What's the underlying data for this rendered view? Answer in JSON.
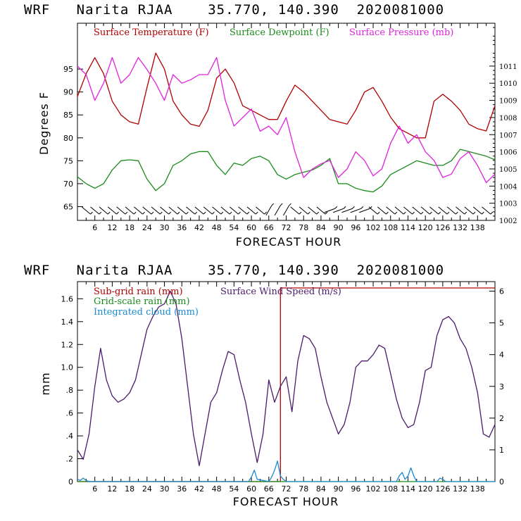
{
  "chart_data": [
    {
      "type": "line",
      "header": "WRF   Narita RJAA    35.770, 140.390  2020081000",
      "xlabel": "FORECAST HOUR",
      "ylabel": "Degrees F",
      "xlim": [
        0,
        144
      ],
      "ylim": [
        62,
        105
      ],
      "y2lim": [
        1002,
        1013.5
      ],
      "xticks": [
        6,
        12,
        18,
        24,
        30,
        36,
        42,
        48,
        54,
        60,
        66,
        72,
        78,
        84,
        90,
        96,
        102,
        108,
        114,
        120,
        126,
        132,
        138
      ],
      "yticks": [
        65,
        70,
        75,
        80,
        85,
        90,
        95
      ],
      "y2ticks": [
        1002,
        1003,
        1004,
        1005,
        1006,
        1007,
        1008,
        1009,
        1010,
        1011
      ],
      "series": [
        {
          "name": "Surface Temperature (F)",
          "color": "#b00000",
          "axis": "left",
          "x": [
            0,
            3,
            6,
            9,
            12,
            15,
            18,
            21,
            24,
            27,
            30,
            33,
            36,
            39,
            42,
            45,
            48,
            51,
            54,
            57,
            60,
            63,
            66,
            69,
            72,
            75,
            78,
            81,
            84,
            87,
            90,
            93,
            96,
            99,
            102,
            105,
            108,
            111,
            114,
            117,
            120,
            123,
            126,
            129,
            132,
            135,
            138,
            141,
            144
          ],
          "values": [
            89,
            94,
            97.5,
            94,
            88,
            85,
            83.5,
            83,
            91,
            98.5,
            95,
            88,
            85,
            83,
            82.5,
            86,
            93,
            95,
            92,
            87,
            86,
            85,
            84,
            84,
            88,
            91.5,
            90,
            88,
            86,
            84,
            83.5,
            83,
            86,
            90,
            91,
            88,
            84.5,
            82,
            81,
            80,
            80,
            88,
            89.5,
            88,
            86,
            83,
            82,
            81.5,
            87
          ]
        },
        {
          "name": "Surface Dewpoint (F)",
          "color": "#1a8a1a",
          "axis": "left",
          "x": [
            0,
            3,
            6,
            9,
            12,
            15,
            18,
            21,
            24,
            27,
            30,
            33,
            36,
            39,
            42,
            45,
            48,
            51,
            54,
            57,
            60,
            63,
            66,
            69,
            72,
            75,
            78,
            81,
            84,
            87,
            90,
            93,
            96,
            99,
            102,
            105,
            108,
            111,
            114,
            117,
            120,
            123,
            126,
            129,
            132,
            135,
            138,
            141,
            144
          ],
          "values": [
            71.5,
            70,
            69,
            70,
            73,
            75,
            75.2,
            75,
            71,
            68.5,
            70,
            74,
            75,
            76.5,
            77,
            77,
            74,
            72,
            74.5,
            74,
            75.5,
            76,
            75,
            72,
            71,
            72,
            72.5,
            73,
            74,
            75.5,
            70,
            70,
            69,
            68.5,
            68.2,
            69.5,
            72,
            73,
            74,
            75,
            74.5,
            74,
            74,
            75,
            77.5,
            77,
            76.5,
            76,
            75.2
          ]
        },
        {
          "name": "Surface Pressure (mb)",
          "color": "#e020e0",
          "axis": "right",
          "x": [
            0,
            3,
            6,
            9,
            12,
            15,
            18,
            21,
            24,
            27,
            30,
            33,
            36,
            39,
            42,
            45,
            48,
            51,
            54,
            57,
            60,
            63,
            66,
            69,
            72,
            75,
            78,
            81,
            84,
            87,
            90,
            93,
            96,
            99,
            102,
            105,
            108,
            111,
            114,
            117,
            120,
            123,
            126,
            129,
            132,
            135,
            138,
            141,
            144
          ],
          "values": [
            1011,
            1010.5,
            1009,
            1010,
            1011.5,
            1010,
            1010.5,
            1011.5,
            1010.8,
            1010,
            1009,
            1010.5,
            1010,
            1010.2,
            1010.5,
            1010.5,
            1011.5,
            1009,
            1007.5,
            1008,
            1008.5,
            1007.2,
            1007.5,
            1007,
            1008,
            1006,
            1004.5,
            1005,
            1005.3,
            1005.5,
            1004.5,
            1005,
            1006,
            1005.5,
            1004.6,
            1005,
            1006.5,
            1007.5,
            1006.5,
            1007,
            1006,
            1005.5,
            1004.5,
            1004.7,
            1005.6,
            1006,
            1005.2,
            1004.2,
            1004.7
          ]
        }
      ],
      "wind_barbs": true
    },
    {
      "type": "line",
      "header": "WRF   Narita RJAA    35.770, 140.390  2020081000",
      "xlabel": "FORECAST HOUR",
      "ylabel": "mm",
      "xlim": [
        0,
        144
      ],
      "ylim": [
        0,
        1.75
      ],
      "y2lim": [
        0,
        6.3
      ],
      "xticks": [
        6,
        12,
        18,
        24,
        30,
        36,
        42,
        48,
        54,
        60,
        66,
        72,
        78,
        84,
        90,
        96,
        102,
        108,
        114,
        120,
        126,
        132,
        138
      ],
      "yticks": [
        0,
        0.2,
        0.4,
        0.6,
        0.8,
        1.0,
        1.2,
        1.4,
        1.6
      ],
      "ytick_labels": [
        "0",
        ".2",
        ".4",
        ".6",
        ".8",
        "1.0",
        "1.2",
        "1.4",
        "1.6"
      ],
      "y2ticks": [
        0,
        1,
        2,
        3,
        4,
        5,
        6
      ],
      "series": [
        {
          "name": "Sub-grid rain (mm)",
          "color": "#b00000",
          "axis": "right",
          "x": [
            0,
            69,
            69,
            70,
            70,
            144
          ],
          "values": [
            0,
            0,
            0,
            0,
            6.1,
            6.1
          ]
        },
        {
          "name": "Surface Wind Speed (m/s)",
          "color": "#4b1a6b",
          "axis": "right",
          "x": [
            0,
            2,
            4,
            6,
            8,
            10,
            12,
            14,
            16,
            18,
            20,
            22,
            24,
            26,
            28,
            30,
            32,
            34,
            36,
            38,
            40,
            42,
            44,
            46,
            48,
            50,
            52,
            54,
            56,
            58,
            60,
            62,
            64,
            66,
            68,
            70,
            72,
            74,
            76,
            78,
            80,
            82,
            84,
            86,
            88,
            90,
            92,
            94,
            96,
            98,
            100,
            102,
            104,
            106,
            108,
            110,
            112,
            114,
            116,
            118,
            120,
            122,
            124,
            126,
            128,
            130,
            132,
            134,
            136,
            138,
            140,
            142,
            144
          ],
          "values": [
            1,
            0.7,
            1.5,
            3,
            4.2,
            3.2,
            2.7,
            2.5,
            2.6,
            2.8,
            3.2,
            4,
            4.8,
            5.2,
            5.5,
            5.6,
            6,
            5.6,
            4.5,
            3,
            1.5,
            0.5,
            1.5,
            2.5,
            2.8,
            3.5,
            4.1,
            4,
            3.2,
            2.5,
            1.5,
            0.6,
            1.5,
            3.2,
            2.5,
            3,
            3.3,
            2.2,
            3.8,
            4.6,
            4.5,
            4.2,
            3.3,
            2.5,
            2,
            1.5,
            1.8,
            2.5,
            3.6,
            3.8,
            3.8,
            4,
            4.3,
            4.2,
            3.4,
            2.6,
            2,
            1.7,
            1.8,
            2.5,
            3.5,
            3.6,
            4.6,
            5.1,
            5.2,
            5,
            4.5,
            4.2,
            3.6,
            2.8,
            1.5,
            1.4,
            1.8
          ]
        },
        {
          "name": "Grid-scale rain (mm)",
          "color": "#1a8a1a",
          "axis": "left",
          "x": [
            0,
            144
          ],
          "values": [
            0,
            0
          ]
        },
        {
          "name": "Integrated cloud (mm)",
          "color": "#1a8ad0",
          "axis": "left",
          "x": [
            0,
            1,
            2,
            3,
            4,
            59,
            60,
            61,
            62,
            66,
            67,
            68,
            69,
            70,
            71,
            72,
            110,
            111,
            112,
            113,
            114,
            115,
            116,
            117,
            124,
            125,
            126,
            127,
            144
          ],
          "values": [
            0.02,
            0.01,
            0.03,
            0.01,
            0,
            0,
            0.04,
            0.1,
            0.02,
            0,
            0.04,
            0.1,
            0.18,
            0.05,
            0.02,
            0,
            0,
            0.05,
            0.08,
            0.02,
            0.05,
            0.12,
            0.05,
            0,
            0,
            0.03,
            0.02,
            0,
            0
          ]
        }
      ]
    }
  ]
}
